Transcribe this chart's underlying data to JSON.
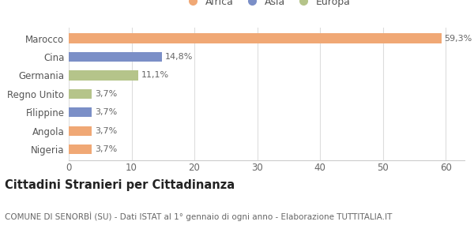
{
  "categories": [
    "Nigeria",
    "Angola",
    "Filippine",
    "Regno Unito",
    "Germania",
    "Cina",
    "Marocco"
  ],
  "values": [
    3.7,
    3.7,
    3.7,
    3.7,
    11.1,
    14.8,
    59.3
  ],
  "labels": [
    "3,7%",
    "3,7%",
    "3,7%",
    "3,7%",
    "11,1%",
    "14,8%",
    "59,3%"
  ],
  "colors": [
    "#f0a875",
    "#f0a875",
    "#7b8fc7",
    "#b5c48a",
    "#b5c48a",
    "#7b8fc7",
    "#f0a875"
  ],
  "legend_items": [
    {
      "label": "Africa",
      "color": "#f0a875"
    },
    {
      "label": "Asia",
      "color": "#7b8fc7"
    },
    {
      "label": "Europa",
      "color": "#b5c48a"
    }
  ],
  "xlim": [
    0,
    63
  ],
  "xticks": [
    0,
    10,
    20,
    30,
    40,
    50,
    60
  ],
  "title_bold": "Cittadini Stranieri per Cittadinanza",
  "subtitle": "COMUNE DI SENORBÌ (SU) - Dati ISTAT al 1° gennaio di ogni anno - Elaborazione TUTTITALIA.IT",
  "background_color": "#ffffff",
  "bar_height": 0.52,
  "label_fontsize": 8.0,
  "tick_fontsize": 8.5,
  "ytick_fontsize": 8.5,
  "legend_fontsize": 9.0,
  "title_fontsize": 10.5,
  "subtitle_fontsize": 7.5
}
